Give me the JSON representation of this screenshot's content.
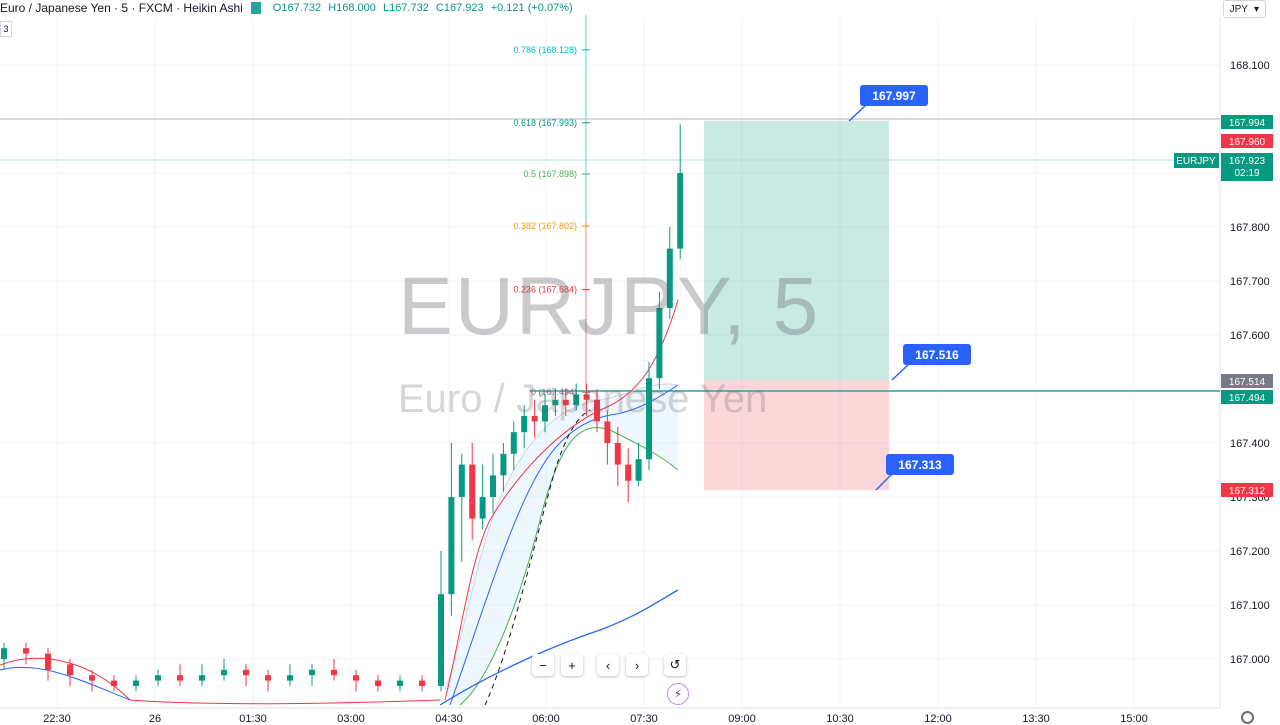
{
  "header": {
    "title": "Euro / Japanese Yen · 5 · FXCM · Heikin Ashi",
    "open": "O167.732",
    "high": "H168.000",
    "low": "L167.732",
    "close": "C167.923",
    "change": "+0.121 (+0.07%)",
    "currency": "JPY",
    "indicator_count": "3"
  },
  "watermark": {
    "symbol": "EURJPY, 5",
    "description": "Euro / Japanese Yen"
  },
  "chart_data": {
    "type": "candlestick",
    "title": "Euro / Japanese Yen · 5 · FXCM · Heikin Ashi",
    "ylim": [
      166.94,
      168.21
    ],
    "y_ticks": [
      "168.100",
      "167.900",
      "167.800",
      "167.700",
      "167.600",
      "167.400",
      "167.300",
      "167.200",
      "167.100",
      "167.000"
    ],
    "x_ticks": [
      "22:30",
      "26",
      "01:30",
      "03:00",
      "04:30",
      "06:00",
      "07:30",
      "09:00",
      "10:30",
      "12:00",
      "13:30",
      "15:00"
    ],
    "price_tags": {
      "symbol": "EURJPY",
      "last": "167.923",
      "countdown": "02:19",
      "high_tag": "167.994",
      "high_tag_red": "167.960",
      "entry_grey": "167.514",
      "entry_green": "167.494",
      "stop_tag": "167.312"
    },
    "fib_levels": [
      {
        "label": "0.786 (168.128)",
        "value": 168.128,
        "color": "#00bcd4"
      },
      {
        "label": "0.618 (167.993)",
        "value": 167.993,
        "color": "#089981"
      },
      {
        "label": "0.5 (167.898)",
        "value": 167.898,
        "color": "#4caf50"
      },
      {
        "label": "0.382 (167.802)",
        "value": 167.802,
        "color": "#ff9800"
      },
      {
        "label": "0.236 (167.684)",
        "value": 167.684,
        "color": "#f23645"
      },
      {
        "label": "0 (167.494)",
        "value": 167.494,
        "color": "#787b86"
      }
    ],
    "position": {
      "target": "167.997",
      "entry": "167.516",
      "stop": "167.313",
      "target_value": 167.997,
      "entry_value": 167.516,
      "stop_value": 167.313
    },
    "candles": [
      {
        "o": 167.0,
        "c": 167.02,
        "h": 167.03,
        "l": 166.98
      },
      {
        "o": 167.02,
        "c": 167.01,
        "h": 167.03,
        "l": 166.99
      },
      {
        "o": 167.01,
        "c": 166.98,
        "h": 167.02,
        "l": 166.96
      },
      {
        "o": 166.99,
        "c": 166.97,
        "h": 167.0,
        "l": 166.95
      },
      {
        "o": 166.97,
        "c": 166.96,
        "h": 166.98,
        "l": 166.94
      },
      {
        "o": 166.96,
        "c": 166.95,
        "h": 166.97,
        "l": 166.94
      },
      {
        "o": 166.95,
        "c": 166.96,
        "h": 166.97,
        "l": 166.94
      },
      {
        "o": 166.96,
        "c": 166.97,
        "h": 166.98,
        "l": 166.95
      },
      {
        "o": 166.97,
        "c": 166.96,
        "h": 166.99,
        "l": 166.95
      },
      {
        "o": 166.96,
        "c": 166.97,
        "h": 166.99,
        "l": 166.95
      },
      {
        "o": 166.97,
        "c": 166.98,
        "h": 167.0,
        "l": 166.96
      },
      {
        "o": 166.98,
        "c": 166.97,
        "h": 166.99,
        "l": 166.95
      },
      {
        "o": 166.97,
        "c": 166.96,
        "h": 166.98,
        "l": 166.94
      },
      {
        "o": 166.96,
        "c": 166.97,
        "h": 166.99,
        "l": 166.95
      },
      {
        "o": 166.97,
        "c": 166.98,
        "h": 166.99,
        "l": 166.95
      },
      {
        "o": 166.98,
        "c": 166.97,
        "h": 167.0,
        "l": 166.96
      },
      {
        "o": 166.97,
        "c": 166.96,
        "h": 166.98,
        "l": 166.94
      },
      {
        "o": 166.96,
        "c": 166.95,
        "h": 166.97,
        "l": 166.94
      },
      {
        "o": 166.95,
        "c": 166.96,
        "h": 166.97,
        "l": 166.94
      },
      {
        "o": 166.96,
        "c": 166.95,
        "h": 166.97,
        "l": 166.94
      },
      {
        "o": 166.95,
        "c": 167.12,
        "h": 167.2,
        "l": 166.94
      },
      {
        "o": 167.12,
        "c": 167.3,
        "h": 167.4,
        "l": 167.08
      },
      {
        "o": 167.3,
        "c": 167.36,
        "h": 167.38,
        "l": 167.18
      },
      {
        "o": 167.36,
        "c": 167.26,
        "h": 167.4,
        "l": 167.22
      },
      {
        "o": 167.26,
        "c": 167.3,
        "h": 167.36,
        "l": 167.24
      },
      {
        "o": 167.3,
        "c": 167.34,
        "h": 167.38,
        "l": 167.27
      },
      {
        "o": 167.34,
        "c": 167.38,
        "h": 167.4,
        "l": 167.31
      },
      {
        "o": 167.38,
        "c": 167.42,
        "h": 167.44,
        "l": 167.35
      },
      {
        "o": 167.42,
        "c": 167.45,
        "h": 167.47,
        "l": 167.39
      },
      {
        "o": 167.45,
        "c": 167.44,
        "h": 167.48,
        "l": 167.41
      },
      {
        "o": 167.44,
        "c": 167.47,
        "h": 167.49,
        "l": 167.42
      },
      {
        "o": 167.47,
        "c": 167.48,
        "h": 167.5,
        "l": 167.45
      },
      {
        "o": 167.48,
        "c": 167.47,
        "h": 167.5,
        "l": 167.45
      },
      {
        "o": 167.47,
        "c": 167.49,
        "h": 167.51,
        "l": 167.46
      },
      {
        "o": 167.49,
        "c": 167.48,
        "h": 167.51,
        "l": 167.45
      },
      {
        "o": 167.48,
        "c": 167.44,
        "h": 167.5,
        "l": 167.42
      },
      {
        "o": 167.44,
        "c": 167.4,
        "h": 167.46,
        "l": 167.36
      },
      {
        "o": 167.4,
        "c": 167.36,
        "h": 167.43,
        "l": 167.32
      },
      {
        "o": 167.36,
        "c": 167.33,
        "h": 167.39,
        "l": 167.29
      },
      {
        "o": 167.33,
        "c": 167.37,
        "h": 167.4,
        "l": 167.32
      },
      {
        "o": 167.37,
        "c": 167.52,
        "h": 167.55,
        "l": 167.35
      },
      {
        "o": 167.52,
        "c": 167.65,
        "h": 167.68,
        "l": 167.5
      },
      {
        "o": 167.65,
        "c": 167.76,
        "h": 167.8,
        "l": 167.63
      },
      {
        "o": 167.76,
        "c": 167.9,
        "h": 167.99,
        "l": 167.74
      }
    ]
  }
}
